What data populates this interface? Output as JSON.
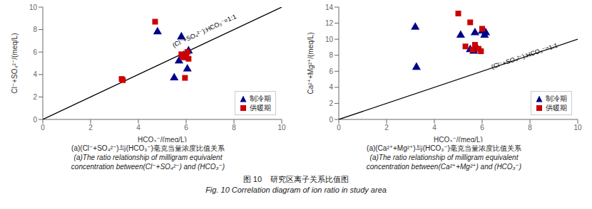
{
  "title": [
    "图 10    研究区离子关系比值图",
    "Fig. 10 Correlation diagram of ion ratio in study area"
  ],
  "chart_data": [
    {
      "type": "scatter",
      "xlabel": "HCO₃⁻/(meq/L)",
      "ylabel": "Cl⁻+SO₄²⁻/(meq/L)",
      "xlim": [
        0,
        10
      ],
      "ylim": [
        0,
        10
      ],
      "xticks": [
        0,
        2,
        4,
        6,
        8,
        10
      ],
      "yticks": [
        0,
        2,
        4,
        6,
        8,
        10
      ],
      "grid": false,
      "legend": "lower right",
      "series": [
        {
          "type": "line",
          "color": "#000000",
          "x": [
            0,
            10
          ],
          "y": [
            0,
            10
          ]
        },
        {
          "name": "制冷期",
          "color": "#00008B",
          "marker": "triangle",
          "x": [
            4.8,
            5.8,
            5.9,
            6.0,
            6.1,
            5.7,
            5.5,
            6.05
          ],
          "y": [
            7.8,
            7.35,
            5.7,
            5.5,
            6.1,
            5.2,
            3.7,
            4.5
          ]
        },
        {
          "name": "供暖期",
          "color": "#CC0000",
          "marker": "square",
          "x": [
            3.3,
            3.35,
            4.7,
            5.8,
            5.85,
            5.95,
            6.05,
            6.1,
            6.0
          ],
          "y": [
            3.6,
            3.5,
            8.7,
            5.8,
            5.55,
            3.7,
            6.0,
            5.4,
            5.7
          ]
        }
      ],
      "annotations": [
        {
          "text": "(Cl⁻+SO₄²⁻):HCO₃⁻=1:1",
          "x": 6.8,
          "y": 7.4
        }
      ],
      "caption": [
        "(a)(Cl⁻+SO₄²⁻)与(HCO₃⁻)毫克当量浓度比值关系",
        "(a)The ratio relationship of milligram equivalent",
        "concentration between(Cl⁻+SO₄²⁻) and (HCO₃⁻)"
      ]
    },
    {
      "type": "scatter",
      "xlabel": "HCO₃⁻/(meq/L)",
      "ylabel": "Ca²⁺+Mg²⁺/(meq/L)",
      "xlim": [
        0,
        10
      ],
      "ylim": [
        0,
        14
      ],
      "xticks": [
        0,
        2,
        4,
        6,
        8,
        10
      ],
      "yticks": [
        0,
        2,
        4,
        6,
        8,
        10,
        12,
        14
      ],
      "grid": false,
      "legend": "lower right",
      "series": [
        {
          "type": "line",
          "color": "#000000",
          "x": [
            0,
            10
          ],
          "y": [
            0,
            10
          ]
        },
        {
          "name": "制冷期",
          "color": "#00008B",
          "marker": "triangle",
          "x": [
            3.2,
            3.25,
            5.1,
            5.5,
            5.65,
            5.7,
            5.75,
            5.8,
            6.0,
            6.1,
            6.15
          ],
          "y": [
            11.5,
            6.5,
            10.5,
            8.7,
            8.5,
            10.8,
            9.0,
            8.8,
            11.0,
            10.5,
            10.8
          ]
        },
        {
          "name": "供暖期",
          "color": "#CC0000",
          "marker": "square",
          "x": [
            5.0,
            5.3,
            5.5,
            5.6,
            5.7,
            5.85,
            5.95,
            6.0
          ],
          "y": [
            13.2,
            9.1,
            12.1,
            8.7,
            9.3,
            8.8,
            8.5,
            11.3
          ]
        }
      ],
      "annotations": [
        {
          "text": "(Cl⁻+SO₄²⁻):HCO₃⁻=1:1",
          "x": 7.8,
          "y": 7.2
        }
      ],
      "caption": [
        "(a)(Ca²⁺+Mg²⁺)与(HCO₃⁻)毫克当量浓度比值关系",
        "(a)The ratio relationship of milligram equivalent",
        "concentration between(Ca²⁺+Mg²⁺) and (HCO₃⁻)"
      ]
    }
  ]
}
